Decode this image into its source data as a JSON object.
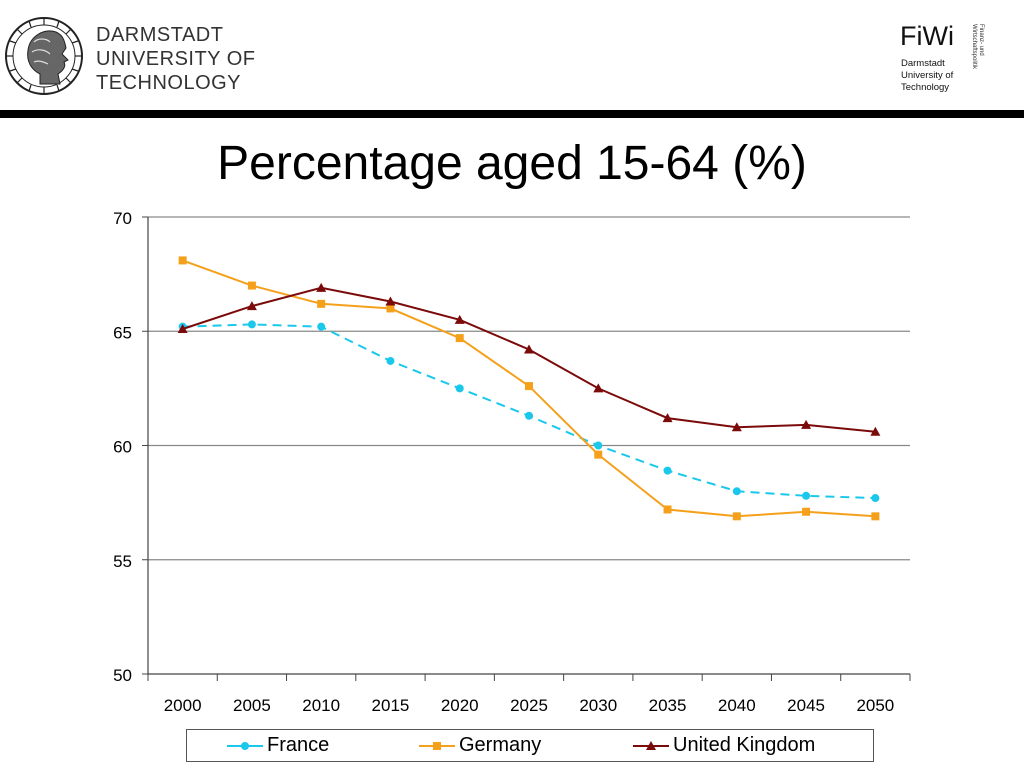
{
  "header": {
    "university_lines": [
      "DARMSTADT",
      "UNIVERSITY OF",
      "TECHNOLOGY"
    ],
    "fiwi_title": "FiWi",
    "fiwi_lines": [
      "Darmstadt",
      "University of",
      "Technology"
    ],
    "fiwi_rotated_lines": [
      "Finanz- und",
      "Wirtschaftspolitik"
    ],
    "seal_icon": "university-seal-icon"
  },
  "colors": {
    "France": "#1AC8EC",
    "Germany": "#F5A01A",
    "United Kingdom": "#7B0A0A",
    "grid": "#8A8A8A",
    "rule": "#000000"
  },
  "chart_data": {
    "type": "line",
    "title": "Percentage aged 15-64 (%)",
    "xlabel": "",
    "ylabel": "",
    "x": [
      "2000",
      "2005",
      "2010",
      "2015",
      "2020",
      "2025",
      "2030",
      "2035",
      "2040",
      "2045",
      "2050"
    ],
    "ylim": [
      50,
      70
    ],
    "yticks": [
      "50",
      "55",
      "60",
      "65",
      "70"
    ],
    "grid": true,
    "legend_position": "bottom",
    "series": [
      {
        "name": "France",
        "marker": "circle",
        "style": "dashed",
        "values": [
          65.2,
          65.3,
          65.2,
          63.7,
          62.5,
          61.3,
          60.0,
          58.9,
          58.0,
          57.8,
          57.7
        ]
      },
      {
        "name": "Germany",
        "marker": "square",
        "style": "solid",
        "values": [
          68.1,
          67.0,
          66.2,
          66.0,
          64.7,
          62.6,
          59.6,
          57.2,
          56.9,
          57.1,
          56.9
        ]
      },
      {
        "name": "United Kingdom",
        "marker": "triangle",
        "style": "solid",
        "values": [
          65.1,
          66.1,
          66.9,
          66.3,
          65.5,
          64.2,
          62.5,
          61.2,
          60.8,
          60.9,
          60.6
        ]
      }
    ]
  }
}
